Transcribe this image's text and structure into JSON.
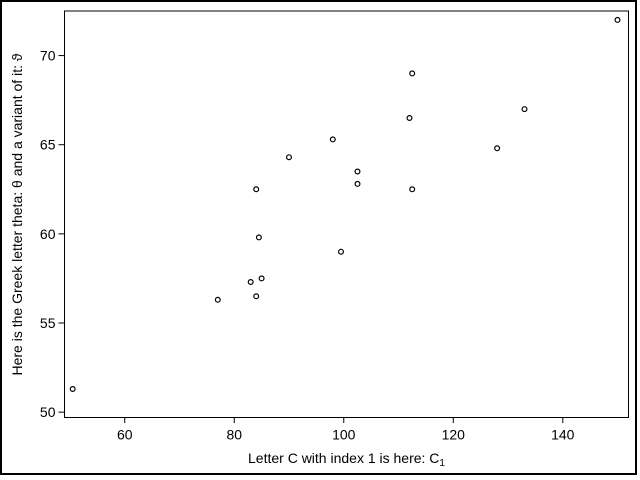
{
  "figure": {
    "background_color": "#ffffff",
    "foreground_color": "#000000",
    "border_color": "#000000"
  },
  "chart_data": {
    "type": "scatter",
    "title": "",
    "xlabel_prefix": "Letter C with index 1 is here: C",
    "xlabel_subscript": "1",
    "ylabel": "Here is the Greek letter theta: θ and a variant of it: ϑ",
    "xlim": [
      49,
      152
    ],
    "ylim": [
      49.7,
      72.5
    ],
    "x_ticks": [
      60,
      80,
      100,
      120,
      140
    ],
    "y_ticks": [
      50,
      55,
      60,
      65,
      70
    ],
    "grid": false,
    "legend": false,
    "marker": "open-circle",
    "marker_color": "#000000",
    "points": [
      {
        "x": 50.5,
        "y": 51.3
      },
      {
        "x": 77,
        "y": 56.3
      },
      {
        "x": 83,
        "y": 57.3
      },
      {
        "x": 84,
        "y": 56.5
      },
      {
        "x": 85,
        "y": 57.5
      },
      {
        "x": 84.5,
        "y": 59.8
      },
      {
        "x": 84,
        "y": 62.5
      },
      {
        "x": 90,
        "y": 64.3
      },
      {
        "x": 98,
        "y": 65.3
      },
      {
        "x": 99.5,
        "y": 59.0
      },
      {
        "x": 102.5,
        "y": 62.8
      },
      {
        "x": 102.5,
        "y": 63.5
      },
      {
        "x": 112,
        "y": 66.5
      },
      {
        "x": 112.5,
        "y": 62.5
      },
      {
        "x": 112.5,
        "y": 69.0
      },
      {
        "x": 128,
        "y": 64.8
      },
      {
        "x": 133,
        "y": 67.0
      },
      {
        "x": 150,
        "y": 72.0
      }
    ]
  }
}
